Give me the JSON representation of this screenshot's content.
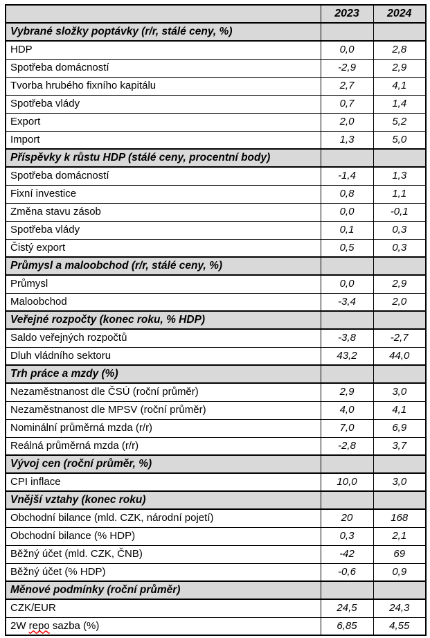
{
  "table": {
    "header": {
      "label_column": "",
      "col_2023": "2023",
      "col_2024": "2024"
    },
    "sections": [
      {
        "heading": "Vybrané složky poptávky (r/r, stálé ceny, %)",
        "rows": [
          {
            "label": "HDP",
            "y2023": "0,0",
            "y2024": "2,8"
          },
          {
            "label": "Spotřeba domácností",
            "y2023": "-2,9",
            "y2024": "2,9"
          },
          {
            "label": "Tvorba hrubého fixního kapitálu",
            "y2023": "2,7",
            "y2024": "4,1"
          },
          {
            "label": "Spotřeba vlády",
            "y2023": "0,7",
            "y2024": "1,4"
          },
          {
            "label": "Export",
            "y2023": "2,0",
            "y2024": "5,2"
          },
          {
            "label": "Import",
            "y2023": "1,3",
            "y2024": "5,0"
          }
        ]
      },
      {
        "heading": "Příspěvky k růstu HDP (stálé ceny, procentní body)",
        "rows": [
          {
            "label": "Spotřeba domácností",
            "y2023": "-1,4",
            "y2024": "1,3"
          },
          {
            "label": "Fixní investice",
            "y2023": "0,8",
            "y2024": "1,1"
          },
          {
            "label": "Změna stavu zásob",
            "y2023": "0,0",
            "y2024": "-0,1"
          },
          {
            "label": "Spotřeba vlády",
            "y2023": "0,1",
            "y2024": "0,3"
          },
          {
            "label": "Čistý export",
            "y2023": "0,5",
            "y2024": "0,3"
          }
        ]
      },
      {
        "heading": "Průmysl a maloobchod (r/r, stálé ceny, %)",
        "rows": [
          {
            "label": "Průmysl",
            "y2023": "0,0",
            "y2024": "2,9"
          },
          {
            "label": "Maloobchod",
            "y2023": "-3,4",
            "y2024": "2,0"
          }
        ]
      },
      {
        "heading": "Veřejné rozpočty (konec roku, % HDP)",
        "rows": [
          {
            "label": "Saldo veřejných rozpočtů",
            "y2023": "-3,8",
            "y2024": "-2,7"
          },
          {
            "label": "Dluh vládního sektoru",
            "y2023": "43,2",
            "y2024": "44,0"
          }
        ]
      },
      {
        "heading": "Trh práce a mzdy (%)",
        "rows": [
          {
            "label": "Nezaměstnanost dle ČSÚ (roční průměr)",
            "y2023": "2,9",
            "y2024": "3,0"
          },
          {
            "label": "Nezaměstnanost dle MPSV (roční průměr)",
            "y2023": "4,0",
            "y2024": "4,1"
          },
          {
            "label": "Nominální průměrná mzda (r/r)",
            "y2023": "7,0",
            "y2024": "6,9"
          },
          {
            "label": "Reálná průměrná mzda (r/r)",
            "y2023": "-2,8",
            "y2024": "3,7"
          }
        ]
      },
      {
        "heading": "Vývoj cen (roční průměr, %)",
        "rows": [
          {
            "label": "CPI inflace",
            "y2023": "10,0",
            "y2024": "3,0"
          }
        ]
      },
      {
        "heading": "Vnější vztahy (konec roku)",
        "rows": [
          {
            "label": "Obchodní bilance (mld. CZK, národní pojetí)",
            "y2023": "20",
            "y2024": "168"
          },
          {
            "label": "Obchodní bilance (% HDP)",
            "y2023": "0,3",
            "y2024": "2,1"
          },
          {
            "label": "Běžný účet (mld. CZK, ČNB)",
            "y2023": "-42",
            "y2024": "69"
          },
          {
            "label": "Běžný účet (% HDP)",
            "y2023": "-0,6",
            "y2024": "0,9"
          }
        ]
      },
      {
        "heading": "Měnové podmínky (roční průměr)",
        "rows": [
          {
            "label": "CZK/EUR",
            "y2023": "24,5",
            "y2024": "24,3"
          },
          {
            "label": "2W repo sazba (%)",
            "misspelled_word": "repo",
            "y2023": "6,85",
            "y2024": "4,55"
          }
        ]
      }
    ]
  },
  "colors": {
    "section_bg": "#d9d9d9",
    "border": "#000000",
    "spellcheck_underline": "#ff0000"
  }
}
